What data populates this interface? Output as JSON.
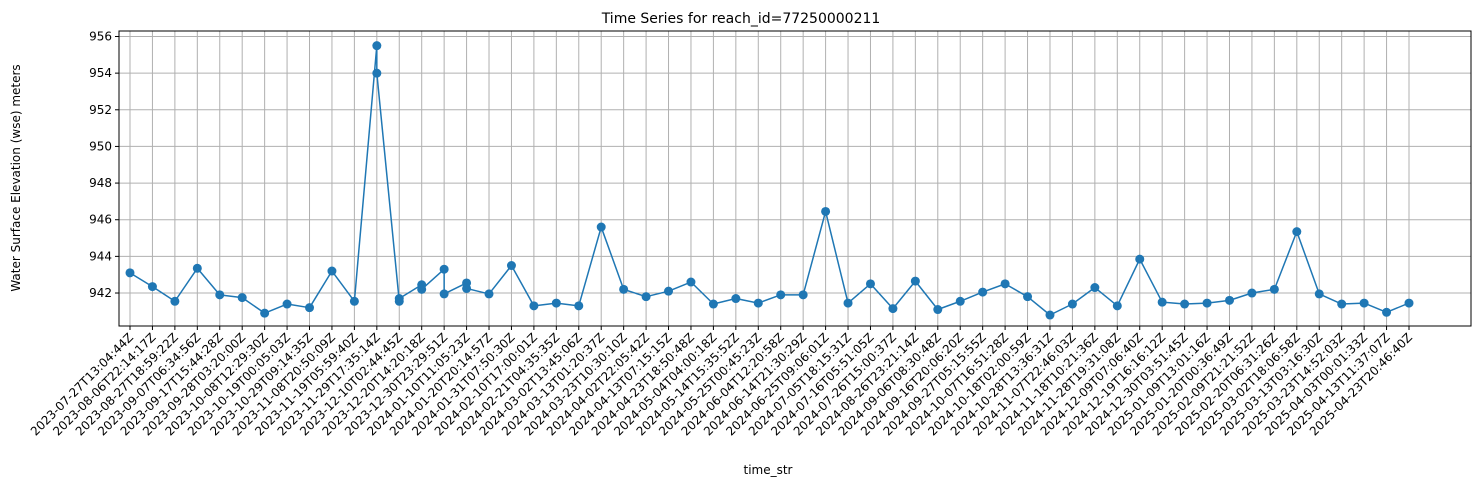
{
  "chart_data": {
    "type": "line",
    "title": "Time Series for reach_id=77250000211",
    "xlabel": "time_str",
    "ylabel": "Water Surface Elevation (wse) meters",
    "ylim": [
      940.2,
      956.3
    ],
    "y_ticks": [
      942,
      944,
      946,
      948,
      950,
      952,
      954,
      956
    ],
    "grid": true,
    "x_tick_labels": [
      "2023-07-27T13:04:44Z",
      "2023-08-06T22:14:17Z",
      "2023-08-27T18:59:22Z",
      "2023-09-07T06:34:56Z",
      "2023-09-17T15:44:28Z",
      "2023-09-28T03:20:00Z",
      "2023-10-08T12:29:30Z",
      "2023-10-19T00:05:03Z",
      "2023-10-29T09:14:35Z",
      "2023-11-08T20:50:09Z",
      "2023-11-19T05:59:40Z",
      "2023-11-29T17:35:14Z",
      "2023-12-10T02:44:45Z",
      "2023-12-20T14:20:18Z",
      "2023-12-30T23:29:51Z",
      "2024-01-10T11:05:23Z",
      "2024-01-20T20:14:57Z",
      "2024-01-31T07:50:30Z",
      "2024-02-10T17:00:01Z",
      "2024-02-21T04:35:35Z",
      "2024-03-02T13:45:06Z",
      "2024-03-13T01:20:37Z",
      "2024-03-23T10:30:10Z",
      "2024-04-02T22:05:42Z",
      "2024-04-13T07:15:15Z",
      "2024-04-23T18:50:48Z",
      "2024-05-04T04:00:18Z",
      "2024-05-14T15:35:52Z",
      "2024-05-25T00:45:23Z",
      "2024-06-04T12:20:58Z",
      "2024-06-14T21:30:29Z",
      "2024-06-25T09:06:01Z",
      "2024-07-05T18:15:31Z",
      "2024-07-16T05:51:05Z",
      "2024-07-26T15:00:37Z",
      "2024-08-26T23:21:14Z",
      "2024-09-06T08:30:48Z",
      "2024-09-16T20:06:20Z",
      "2024-09-27T05:15:55Z",
      "2024-10-07T16:51:28Z",
      "2024-10-18T02:00:59Z",
      "2024-10-28T13:36:31Z",
      "2024-11-07T22:46:03Z",
      "2024-11-18T10:21:36Z",
      "2024-11-28T19:31:08Z",
      "2024-12-09T07:06:40Z",
      "2024-12-19T16:16:12Z",
      "2024-12-30T03:51:45Z",
      "2025-01-09T13:01:16Z",
      "2025-01-20T00:36:49Z",
      "2025-02-09T21:21:52Z",
      "2025-02-20T06:31:26Z",
      "2025-03-02T18:06:58Z",
      "2025-03-13T03:16:30Z",
      "2025-03-23T14:52:03Z",
      "2025-04-03T00:01:33Z",
      "2025-04-13T11:37:07Z",
      "2025-04-23T20:46:40Z"
    ],
    "series": [
      {
        "color": "#1f77b4",
        "marker": "circle",
        "points": [
          {
            "x_index": 0,
            "y": 943.1
          },
          {
            "x_index": 1,
            "y": 942.35
          },
          {
            "x_index": 2,
            "y": 941.55
          },
          {
            "x_index": 3,
            "y": 943.35
          },
          {
            "x_index": 4,
            "y": 941.9
          },
          {
            "x_index": 5,
            "y": 941.75
          },
          {
            "x_index": 6,
            "y": 940.9
          },
          {
            "x_index": 7,
            "y": 941.4
          },
          {
            "x_index": 8,
            "y": 941.2
          },
          {
            "x_index": 9,
            "y": 943.2
          },
          {
            "x_index": 10,
            "y": 941.55
          },
          {
            "x_index": 11,
            "y": 955.5
          },
          {
            "x_index": 11,
            "y": 954.0
          },
          {
            "x_index": 12,
            "y": 941.55
          },
          {
            "x_index": 12,
            "y": 941.7
          },
          {
            "x_index": 13,
            "y": 942.45
          },
          {
            "x_index": 13,
            "y": 942.2
          },
          {
            "x_index": 14,
            "y": 943.3
          },
          {
            "x_index": 14,
            "y": 941.95
          },
          {
            "x_index": 15,
            "y": 942.55
          },
          {
            "x_index": 15,
            "y": 942.25
          },
          {
            "x_index": 16,
            "y": 941.95
          },
          {
            "x_index": 17,
            "y": 943.5
          },
          {
            "x_index": 18,
            "y": 941.3
          },
          {
            "x_index": 19,
            "y": 941.45
          },
          {
            "x_index": 20,
            "y": 941.3
          },
          {
            "x_index": 21,
            "y": 945.6
          },
          {
            "x_index": 22,
            "y": 942.2
          },
          {
            "x_index": 23,
            "y": 941.8
          },
          {
            "x_index": 24,
            "y": 942.1
          },
          {
            "x_index": 25,
            "y": 942.6
          },
          {
            "x_index": 26,
            "y": 941.4
          },
          {
            "x_index": 27,
            "y": 941.7
          },
          {
            "x_index": 28,
            "y": 941.45
          },
          {
            "x_index": 29,
            "y": 941.9
          },
          {
            "x_index": 30,
            "y": 941.9
          },
          {
            "x_index": 31,
            "y": 946.45
          },
          {
            "x_index": 32,
            "y": 941.45
          },
          {
            "x_index": 33,
            "y": 942.5
          },
          {
            "x_index": 34,
            "y": 941.15
          },
          {
            "x_index": 35,
            "y": 942.65
          },
          {
            "x_index": 36,
            "y": 941.1
          },
          {
            "x_index": 37,
            "y": 941.55
          },
          {
            "x_index": 38,
            "y": 942.05
          },
          {
            "x_index": 39,
            "y": 942.5
          },
          {
            "x_index": 40,
            "y": 941.8
          },
          {
            "x_index": 41,
            "y": 940.8
          },
          {
            "x_index": 42,
            "y": 941.4
          },
          {
            "x_index": 43,
            "y": 942.3
          },
          {
            "x_index": 44,
            "y": 941.3
          },
          {
            "x_index": 45,
            "y": 943.85
          },
          {
            "x_index": 46,
            "y": 941.5
          },
          {
            "x_index": 47,
            "y": 941.4
          },
          {
            "x_index": 48,
            "y": 941.45
          },
          {
            "x_index": 49,
            "y": 941.6
          },
          {
            "x_index": 50,
            "y": 942.0
          },
          {
            "x_index": 51,
            "y": 942.2
          },
          {
            "x_index": 52,
            "y": 945.35
          },
          {
            "x_index": 53,
            "y": 941.95
          },
          {
            "x_index": 54,
            "y": 941.4
          },
          {
            "x_index": 55,
            "y": 941.45
          },
          {
            "x_index": 56,
            "y": 940.95
          },
          {
            "x_index": 57,
            "y": 941.45
          }
        ]
      }
    ]
  }
}
